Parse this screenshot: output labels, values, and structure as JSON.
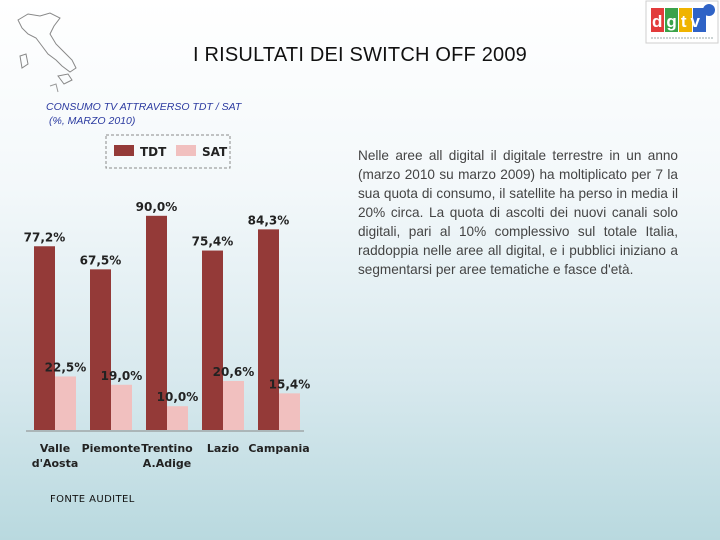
{
  "title": "I RISULTATI DEI SWITCH OFF 2009",
  "caption": {
    "line1": "CONSUMO TV ATTRAVERSO TDT / SAT",
    "line2": "(%, MARZO 2010)"
  },
  "body_text": "Nelle aree all digital il digitale terrestre in un anno (marzo 2010 su marzo 2009) ha moltiplicato per 7 la sua quota di consumo, il satellite ha perso in media il 20% circa. La quota di ascolti dei nuovi canali solo digitali, pari al 10% complessivo sul totale Italia, raddoppia nelle aree all digital, e i pubblici iniziano a segmentarsi per aree tematiche e fasce d'età.",
  "source": "FONTE AUDITEL",
  "logo": {
    "text": "dgtv",
    "icon": "dgtv-logo-icon"
  },
  "decoration": {
    "icon": "italy-map-icon"
  },
  "colors": {
    "tdt": "#943a38",
    "sat": "#f1c0bf"
  },
  "chart_data": {
    "type": "bar",
    "categories": [
      [
        "Valle",
        "d'Aosta"
      ],
      [
        "Piemonte"
      ],
      [
        "Trentino",
        "A.Adige"
      ],
      [
        "Lazio"
      ],
      [
        "Campania"
      ]
    ],
    "series": [
      {
        "name": "TDT",
        "values": [
          77.2,
          67.5,
          90.0,
          75.4,
          84.3
        ],
        "labels": [
          "77,2%",
          "67,5%",
          "90,0%",
          "75,4%",
          "84,3%"
        ]
      },
      {
        "name": "SAT",
        "values": [
          22.5,
          19.0,
          10.0,
          20.6,
          15.4
        ],
        "labels": [
          "22,5%",
          "19,0%",
          "10,0%",
          "20,6%",
          "15,4%"
        ]
      }
    ],
    "legend": "top",
    "ylim": [
      0,
      100
    ],
    "grid": false
  }
}
